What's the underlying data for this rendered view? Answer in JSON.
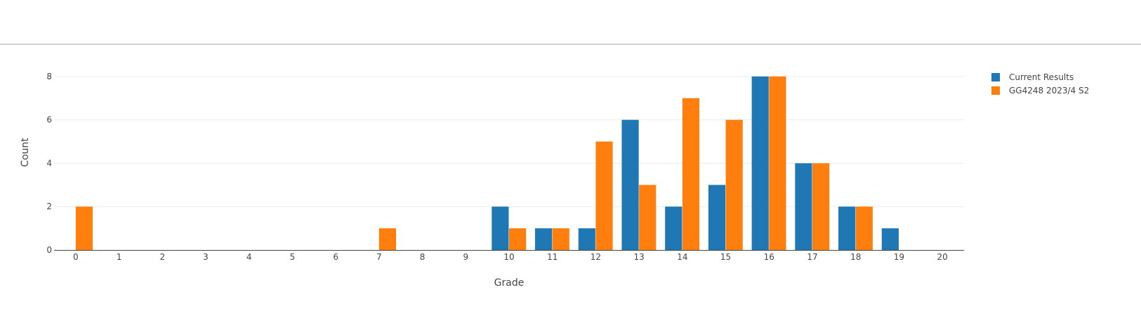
{
  "chart_data": {
    "type": "bar",
    "categories": [
      "0",
      "1",
      "2",
      "3",
      "4",
      "5",
      "6",
      "7",
      "8",
      "9",
      "10",
      "11",
      "12",
      "13",
      "14",
      "15",
      "16",
      "17",
      "18",
      "19",
      "20"
    ],
    "series": [
      {
        "name": "Current Results",
        "color": "#1f77b4",
        "values": [
          0,
          0,
          0,
          0,
          0,
          0,
          0,
          0,
          0,
          0,
          2,
          1,
          1,
          6,
          2,
          3,
          8,
          4,
          2,
          1,
          0
        ]
      },
      {
        "name": "GG4248 2023/4 S2",
        "color": "#ff7f0e",
        "values": [
          2,
          0,
          0,
          0,
          0,
          0,
          0,
          1,
          0,
          0,
          1,
          1,
          5,
          3,
          7,
          6,
          8,
          4,
          2,
          0,
          0
        ]
      }
    ],
    "xlabel": "Grade",
    "ylabel": "Count",
    "ylim": [
      0,
      9
    ],
    "yticks": [
      0,
      2,
      4,
      6,
      8
    ],
    "grid": true,
    "legend_position": "top-right"
  }
}
